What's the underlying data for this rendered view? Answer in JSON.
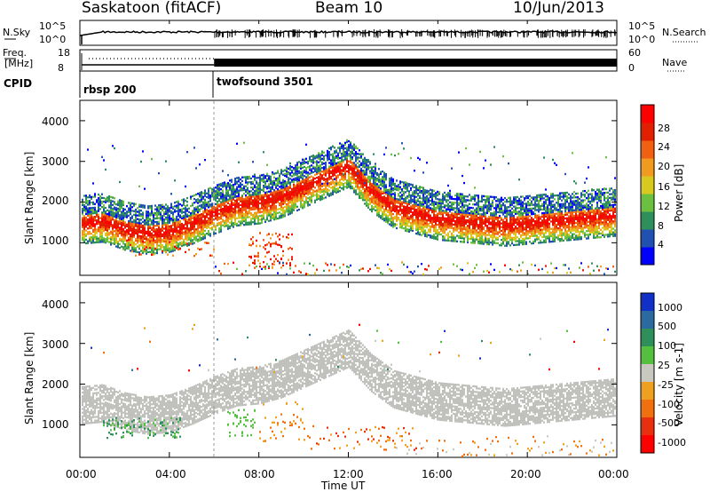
{
  "header": {
    "title": "Saskatoon (fitACF)",
    "beam": "Beam 10",
    "date": "10/Jun/2013"
  },
  "panels": {
    "nsky": {
      "left_label": "N.Sky",
      "right_label": "N.Search",
      "left_ticks": [
        "10^5",
        "10^0"
      ],
      "right_ticks": [
        "10^5",
        "10^0"
      ]
    },
    "freq": {
      "left_label_1": "Freq.",
      "left_label_2": "[MHz]",
      "right_label": "Nave",
      "left_ticks": [
        "18",
        "8"
      ],
      "right_ticks": [
        "60",
        "0"
      ]
    },
    "cpid": {
      "label": "CPID",
      "modes": [
        "rbsp 200",
        "twofsound 3501"
      ]
    }
  },
  "colors": {
    "power_scale": [
      "#0000ff",
      "#2050b0",
      "#2f8f5a",
      "#6cc040",
      "#d8c820",
      "#f09a20",
      "#f06010",
      "#e02000",
      "#ff0000"
    ],
    "velocity_scale": [
      "#1030c8",
      "#2a6aa0",
      "#2f8f5a",
      "#55c040",
      "#c8c8c0",
      "#f0a020",
      "#f07010",
      "#e83010",
      "#ff0000"
    ],
    "ground_scatter": "#c0c0bc"
  },
  "chart_data": [
    {
      "type": "heatmap",
      "name": "power",
      "ylabel": "Slant Range [km]",
      "yticks": [
        "1000",
        "2000",
        "3000",
        "4000"
      ],
      "ylim": [
        200,
        4500
      ],
      "colorbar_label": "Power [dB]",
      "colorbar_ticks": [
        "4",
        "8",
        "12",
        "16",
        "20",
        "24",
        "28"
      ],
      "colorbar_range": [
        0,
        32
      ],
      "mode_change_time": "06:00",
      "echo_band": {
        "times_h": [
          0,
          1,
          2,
          3,
          4,
          5,
          6,
          7,
          8,
          9,
          10,
          11,
          12,
          13,
          14,
          15,
          16,
          17,
          18,
          19,
          20,
          21,
          22,
          23,
          24
        ],
        "center_km": [
          1500,
          1550,
          1350,
          1250,
          1300,
          1500,
          1750,
          1950,
          2000,
          2150,
          2400,
          2650,
          2900,
          2300,
          1900,
          1750,
          1600,
          1550,
          1500,
          1450,
          1500,
          1550,
          1600,
          1650,
          1700
        ]
      }
    },
    {
      "type": "heatmap",
      "name": "velocity",
      "ylabel": "Slant Range [km]",
      "yticks": [
        "1000",
        "2000",
        "3000",
        "4000"
      ],
      "ylim": [
        200,
        4500
      ],
      "xlabel": "Time UT",
      "xticks": [
        "00:00",
        "04:00",
        "08:00",
        "12:00",
        "16:00",
        "20:00",
        "00:00"
      ],
      "xlim_hours": [
        0,
        24
      ],
      "colorbar_label": "Velocity [m s-1]",
      "colorbar_ticks": [
        "1000",
        "500",
        "100",
        "25",
        "-25",
        "-100",
        "-500",
        "-1000"
      ]
    }
  ]
}
